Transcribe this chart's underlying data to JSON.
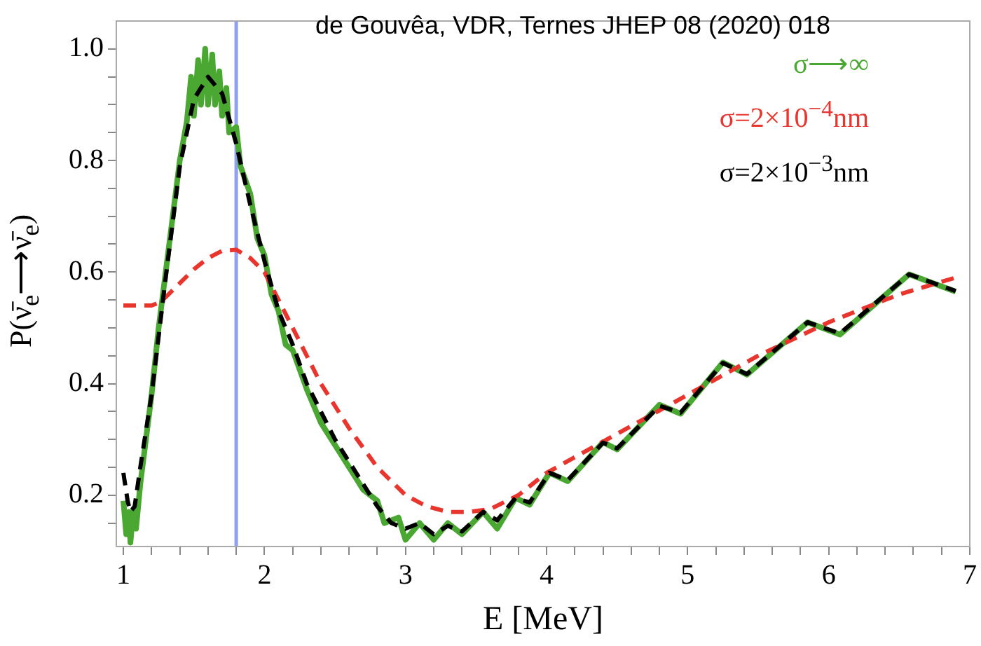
{
  "chart_data": {
    "type": "line",
    "xlabel": "E [MeV]",
    "ylabel": "P(ν̄$_{e}$⟶ν̄$_{e}$)",
    "annotations": [
      "de Gouvêa, VDR, Ternes JHEP 08 (2020) 018"
    ],
    "xlim": [
      0.95,
      7
    ],
    "ylim": [
      0.108,
      1.05
    ],
    "xticks": [
      1,
      {
        "value": 1.2,
        "label": null
      },
      {
        "value": 1.4,
        "label": null
      },
      {
        "value": 1.6,
        "label": null
      },
      {
        "value": 1.8,
        "label": null
      },
      2,
      {
        "value": 2.2,
        "label": null
      },
      {
        "value": 2.4,
        "label": null
      },
      {
        "value": 2.6,
        "label": null
      },
      {
        "value": 2.8,
        "label": null
      },
      3,
      {
        "value": 3.2,
        "label": null
      },
      {
        "value": 3.4,
        "label": null
      },
      {
        "value": 3.6,
        "label": null
      },
      {
        "value": 3.8,
        "label": null
      },
      4,
      {
        "value": 4.2,
        "label": null
      },
      {
        "value": 4.4,
        "label": null
      },
      {
        "value": 4.6,
        "label": null
      },
      {
        "value": 4.8,
        "label": null
      },
      5,
      {
        "value": 5.2,
        "label": null
      },
      {
        "value": 5.4,
        "label": null
      },
      {
        "value": 5.6,
        "label": null
      },
      {
        "value": 5.8,
        "label": null
      },
      6,
      {
        "value": 6.2,
        "label": null
      },
      {
        "value": 6.4,
        "label": null
      },
      {
        "value": 6.6,
        "label": null
      },
      {
        "value": 6.8,
        "label": null
      },
      7
    ],
    "yticks": [
      {
        "value": 0.15,
        "label": null
      },
      {
        "value": 0.2,
        "label": "0.2"
      },
      {
        "value": 0.25,
        "label": null
      },
      {
        "value": 0.3,
        "label": null
      },
      {
        "value": 0.35,
        "label": null
      },
      {
        "value": 0.4,
        "label": "0.4"
      },
      {
        "value": 0.45,
        "label": null
      },
      {
        "value": 0.5,
        "label": null
      },
      {
        "value": 0.55,
        "label": null
      },
      {
        "value": 0.6,
        "label": "0.6"
      },
      {
        "value": 0.65,
        "label": null
      },
      {
        "value": 0.7,
        "label": null
      },
      {
        "value": 0.75,
        "label": null
      },
      {
        "value": 0.8,
        "label": "0.8"
      },
      {
        "value": 0.85,
        "label": null
      },
      {
        "value": 0.9,
        "label": null
      },
      {
        "value": 0.95,
        "label": null
      },
      {
        "value": 1,
        "label": "1.0"
      }
    ],
    "grid": false,
    "legend": "top right",
    "marker": "none",
    "ref_lines": [
      {
        "axis": "x",
        "value": 1.8,
        "color": "#8fa0f0",
        "line_style": "solid"
      }
    ],
    "series": [
      {
        "name": "σ⟶∞",
        "color": "#4aa832",
        "line_style": "solid",
        "x": [
          1.0,
          1.02,
          1.04,
          1.05,
          1.07,
          1.09,
          1.12,
          1.2,
          1.25,
          1.3,
          1.35,
          1.4,
          1.45,
          1.48,
          1.5,
          1.53,
          1.55,
          1.58,
          1.6,
          1.63,
          1.65,
          1.68,
          1.7,
          1.73,
          1.75,
          1.8,
          1.83,
          1.9,
          1.95,
          2.0,
          2.05,
          2.1,
          2.15,
          2.2,
          2.3,
          2.4,
          2.5,
          2.6,
          2.7,
          2.8,
          2.85,
          2.95,
          3.0,
          3.1,
          3.2,
          3.3,
          3.4,
          3.55,
          3.65,
          3.78,
          3.88,
          4.02,
          4.15,
          4.4,
          4.5,
          4.8,
          4.95,
          5.25,
          5.42,
          5.85,
          6.08,
          6.57,
          6.9
        ],
        "values": [
          0.19,
          0.13,
          0.17,
          0.115,
          0.17,
          0.14,
          0.22,
          0.38,
          0.5,
          0.6,
          0.7,
          0.8,
          0.87,
          0.95,
          0.88,
          0.98,
          0.9,
          1.0,
          0.9,
          0.99,
          0.9,
          0.96,
          0.88,
          0.93,
          0.85,
          0.86,
          0.79,
          0.74,
          0.66,
          0.63,
          0.56,
          0.53,
          0.47,
          0.46,
          0.39,
          0.33,
          0.29,
          0.25,
          0.21,
          0.19,
          0.15,
          0.16,
          0.12,
          0.15,
          0.12,
          0.15,
          0.13,
          0.17,
          0.14,
          0.195,
          0.183,
          0.24,
          0.225,
          0.295,
          0.282,
          0.362,
          0.346,
          0.438,
          0.416,
          0.51,
          0.488,
          0.596,
          0.565
        ]
      },
      {
        "name": "σ=2×10$^{−4}$nm",
        "color": "#e8352e",
        "line_style": "dashed",
        "x": [
          1.0,
          1.1,
          1.2,
          1.25,
          1.3,
          1.4,
          1.5,
          1.6,
          1.7,
          1.8,
          1.9,
          2.0,
          2.1,
          2.2,
          2.4,
          2.6,
          2.8,
          3.0,
          3.15,
          3.3,
          3.45,
          3.6,
          3.8,
          4.0,
          4.5,
          5.0,
          5.5,
          6.0,
          6.5,
          6.9
        ],
        "values": [
          0.54,
          0.54,
          0.54,
          0.545,
          0.555,
          0.58,
          0.605,
          0.625,
          0.638,
          0.64,
          0.625,
          0.6,
          0.55,
          0.5,
          0.4,
          0.32,
          0.25,
          0.2,
          0.18,
          0.17,
          0.17,
          0.175,
          0.2,
          0.24,
          0.31,
          0.38,
          0.45,
          0.51,
          0.56,
          0.59
        ]
      },
      {
        "name": "σ=2×10$^{−3}$nm",
        "color": "#000000",
        "line_style": "dashed",
        "x": [
          1.0,
          1.03,
          1.05,
          1.08,
          1.12,
          1.2,
          1.3,
          1.4,
          1.5,
          1.6,
          1.7,
          1.8,
          1.9,
          2.0,
          2.1,
          2.2,
          2.3,
          2.4,
          2.5,
          2.6,
          2.7,
          2.8,
          2.9,
          3.0,
          3.1,
          3.2,
          3.3,
          3.4,
          3.55,
          3.65,
          3.78,
          3.88,
          4.02,
          4.15,
          4.4,
          4.5,
          4.8,
          4.95,
          5.25,
          5.42,
          5.85,
          6.08,
          6.57,
          6.9
        ],
        "values": [
          0.24,
          0.19,
          0.17,
          0.18,
          0.25,
          0.38,
          0.59,
          0.79,
          0.91,
          0.95,
          0.92,
          0.83,
          0.72,
          0.62,
          0.53,
          0.47,
          0.4,
          0.35,
          0.3,
          0.26,
          0.22,
          0.18,
          0.15,
          0.14,
          0.15,
          0.13,
          0.145,
          0.135,
          0.17,
          0.155,
          0.195,
          0.187,
          0.24,
          0.227,
          0.294,
          0.284,
          0.36,
          0.348,
          0.437,
          0.417,
          0.51,
          0.49,
          0.596,
          0.566
        ]
      }
    ]
  }
}
